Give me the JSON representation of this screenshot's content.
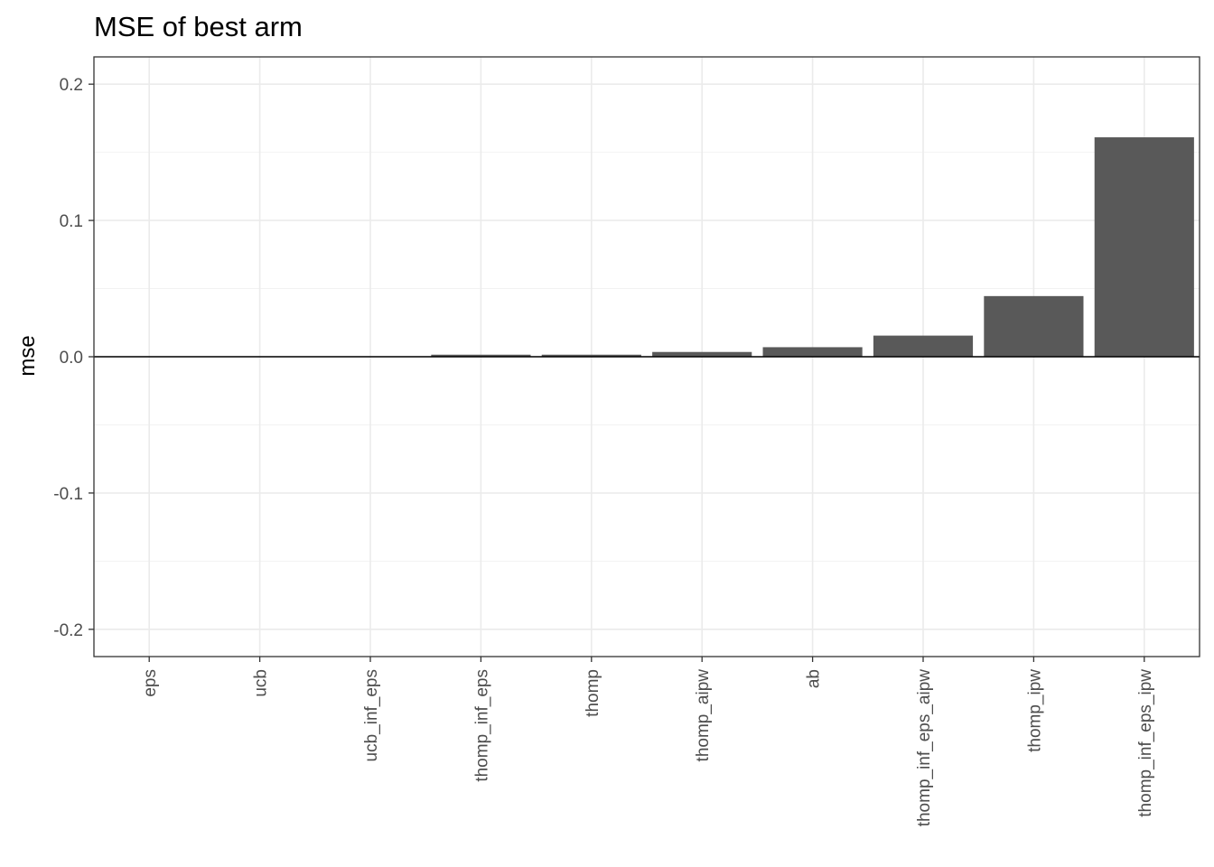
{
  "chart_data": {
    "type": "bar",
    "title": "MSE of best arm",
    "xlabel": "",
    "ylabel": "mse",
    "categories": [
      "eps",
      "ucb",
      "ucb_inf_eps",
      "thomp_inf_eps",
      "thomp",
      "thomp_aipw",
      "ab",
      "thomp_inf_eps_aipw",
      "thomp_ipw",
      "thomp_inf_eps_ipw"
    ],
    "values": [
      0.0,
      0.0,
      0.0002,
      0.0015,
      0.0015,
      0.0035,
      0.007,
      0.0155,
      0.0445,
      0.161
    ],
    "ylim": [
      -0.22,
      0.22
    ],
    "yticks": [
      0.2,
      0.1,
      0.0,
      -0.1,
      -0.2
    ],
    "ytick_labels": [
      "0.2",
      "0.1",
      "0.0",
      "-0.1",
      "-0.2"
    ],
    "grid": true,
    "bar_color": "#595959",
    "legend": "none"
  }
}
